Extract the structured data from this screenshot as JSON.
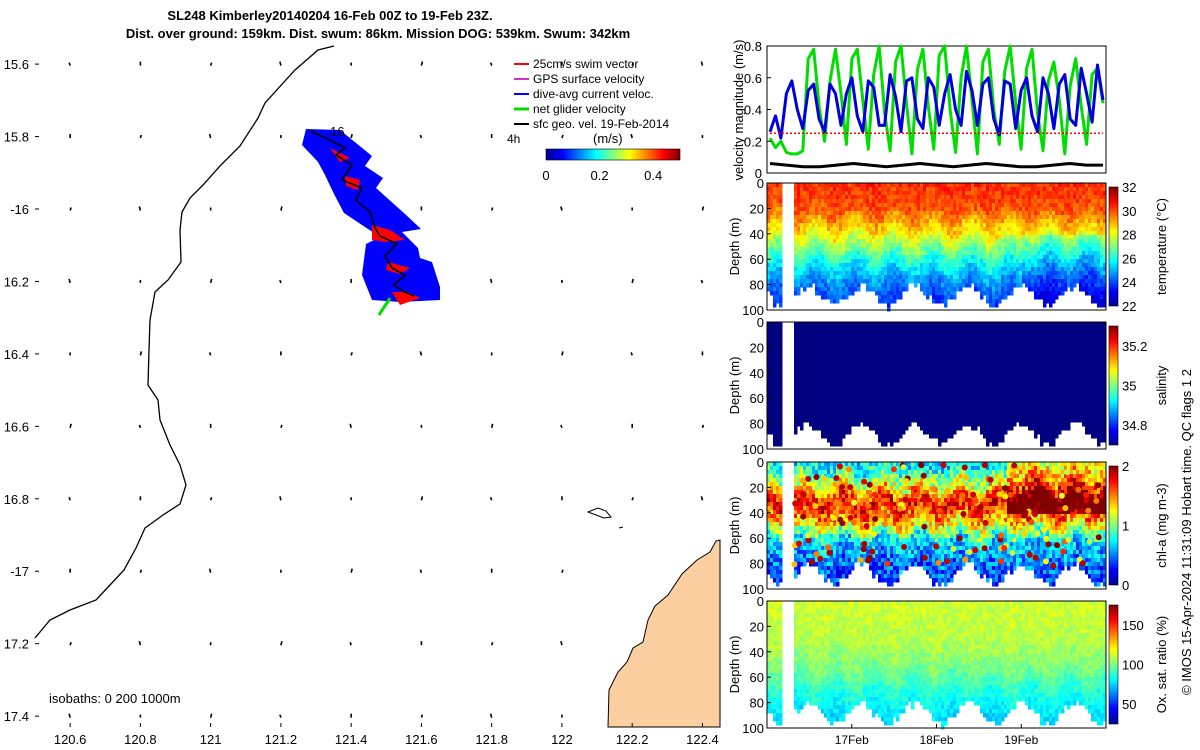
{
  "title_line1": "SL248 Kimberley20140204 16-Feb 00Z to 19-Feb 23Z.",
  "title_line2": "Dist. over ground: 159km. Dist. swum: 86km. Mission DOG: 539km. Swum: 342km",
  "credit": "© IMOS 15-Apr-2024 11:31:09 Hobart time. QC flags 1  2",
  "colors": {
    "track": "#0000ff",
    "track_red": "#ff0000",
    "land": "#fbcf9f",
    "swim": "#ff0000",
    "gps": "#cc33cc",
    "current": "#0000ff",
    "net": "#00dd00",
    "sfc": "#000000"
  },
  "chart_data": [
    {
      "type": "map",
      "name": "glider-track-map",
      "xlim": [
        120.5,
        122.45
      ],
      "ylim": [
        -17.43,
        -15.55
      ],
      "xticks": [
        120.6,
        120.8,
        121,
        121.2,
        121.4,
        121.6,
        121.8,
        122,
        122.2,
        122.4
      ],
      "xtick_labels": [
        "120.6",
        "120.8",
        "121",
        "121.2",
        "121.4",
        "121.6",
        "121.8",
        "122",
        "122.2",
        "122.4"
      ],
      "yticks": [
        -15.6,
        -15.8,
        -16,
        -16.2,
        -16.4,
        -16.6,
        -16.8,
        -17,
        -17.2,
        -17.4
      ],
      "ytick_labels": [
        "15.6",
        "15.8",
        "-16",
        "16.2",
        "16.4",
        "16.6",
        "16.8",
        "-17",
        "17.2",
        "17.4"
      ],
      "track_start_label": "16",
      "track": [
        [
          121.3,
          -15.81
        ],
        [
          121.36,
          -15.86
        ],
        [
          121.4,
          -15.93
        ],
        [
          121.46,
          -16.01
        ],
        [
          121.49,
          -16.08
        ],
        [
          121.52,
          -16.15
        ],
        [
          121.55,
          -16.2
        ],
        [
          121.57,
          -16.26
        ]
      ],
      "end_vector": [
        [
          121.5,
          -16.27
        ],
        [
          121.47,
          -16.32
        ]
      ],
      "legend": [
        "25cm/s swim vector",
        "GPS surface velocity",
        "dive-avg current veloc.",
        "net glider velocity",
        "sfc geo. vel. 19-Feb-2014"
      ],
      "legend_extra": "4h",
      "colorbar": {
        "label": "(m/s)",
        "ticks": [
          0,
          0.2,
          0.4
        ],
        "tick_labels": [
          "0",
          "0.2",
          "0.4"
        ],
        "range": [
          0,
          0.5
        ]
      },
      "isobath_label": "isobaths: 0   200  1000m"
    },
    {
      "type": "line",
      "name": "velocity-panel",
      "ylabel": "velocity magnitude (m/s)",
      "ylim": [
        0,
        0.8
      ],
      "yticks": [
        0,
        0.2,
        0.4,
        0.6,
        0.8
      ],
      "ytick_labels": [
        "0",
        "0.2",
        "0.4",
        "0.6",
        "0.8"
      ],
      "xlim": [
        0,
        4
      ],
      "series": [
        {
          "name": "net glider velocity",
          "color": "#00dd00",
          "values": [
            0.22,
            0.16,
            0.2,
            0.13,
            0.12,
            0.12,
            0.14,
            0.72,
            0.78,
            0.42,
            0.2,
            0.58,
            0.78,
            0.5,
            0.18,
            0.72,
            0.78,
            0.46,
            0.15,
            0.62,
            0.8,
            0.38,
            0.14,
            0.7,
            0.8,
            0.44,
            0.12,
            0.65,
            0.78,
            0.42,
            0.15,
            0.74,
            0.8,
            0.4,
            0.13,
            0.6,
            0.8,
            0.46,
            0.12,
            0.7,
            0.78,
            0.4,
            0.18,
            0.64,
            0.8,
            0.44,
            0.15,
            0.66,
            0.78,
            0.38,
            0.14,
            0.58,
            0.7,
            0.46,
            0.12,
            0.55,
            0.72,
            0.42,
            0.18,
            0.62,
            0.66,
            0.44
          ]
        },
        {
          "name": "dive-avg current veloc.",
          "color": "#0000dd",
          "values": [
            0.26,
            0.36,
            0.22,
            0.5,
            0.58,
            0.4,
            0.28,
            0.52,
            0.56,
            0.34,
            0.26,
            0.56,
            0.5,
            0.3,
            0.5,
            0.6,
            0.36,
            0.26,
            0.58,
            0.54,
            0.3,
            0.3,
            0.62,
            0.48,
            0.26,
            0.58,
            0.6,
            0.34,
            0.28,
            0.6,
            0.54,
            0.3,
            0.5,
            0.62,
            0.4,
            0.3,
            0.64,
            0.52,
            0.3,
            0.56,
            0.6,
            0.34,
            0.24,
            0.58,
            0.56,
            0.28,
            0.52,
            0.6,
            0.36,
            0.26,
            0.6,
            0.5,
            0.28,
            0.56,
            0.62,
            0.34,
            0.3,
            0.66,
            0.5,
            0.32,
            0.68,
            0.46
          ]
        },
        {
          "name": "25cm/s swim vector",
          "color": "#ff0000",
          "values": [
            0.25,
            0.25
          ]
        },
        {
          "name": "sfc geo. vel.",
          "color": "#000000",
          "values": [
            0.06,
            0.05,
            0.04,
            0.04,
            0.05,
            0.06,
            0.05,
            0.04,
            0.05,
            0.06,
            0.05,
            0.04,
            0.05,
            0.06,
            0.05,
            0.04,
            0.04,
            0.05,
            0.06,
            0.05,
            0.05
          ]
        }
      ]
    },
    {
      "type": "heatmap",
      "name": "temperature-section",
      "ylabel": "Depth (m)",
      "cblabel": "temperature (°C)",
      "ylim": [
        100,
        0
      ],
      "yticks": [
        0,
        20,
        40,
        60,
        80,
        100
      ],
      "clim": [
        22,
        32
      ],
      "cticks": [
        22,
        24,
        26,
        28,
        30,
        32
      ],
      "ctick_labels": [
        "22",
        "24",
        "26",
        "28",
        "30",
        "32"
      ],
      "profile": [
        {
          "depth": 0,
          "value": 30.3
        },
        {
          "depth": 20,
          "value": 29.9
        },
        {
          "depth": 35,
          "value": 28.6
        },
        {
          "depth": 50,
          "value": 27.0
        },
        {
          "depth": 65,
          "value": 25.5
        },
        {
          "depth": 80,
          "value": 24.4
        },
        {
          "depth": 95,
          "value": 23.7
        }
      ]
    },
    {
      "type": "heatmap",
      "name": "salinity-section",
      "ylabel": "Depth (m)",
      "cblabel": "salinity",
      "ylim": [
        100,
        0
      ],
      "yticks": [
        0,
        20,
        40,
        60,
        80,
        100
      ],
      "clim": [
        34.7,
        35.3
      ],
      "cticks": [
        34.8,
        35,
        35.2
      ],
      "ctick_labels": [
        "34.8",
        "35",
        "35.2"
      ],
      "profile": [
        {
          "depth": 0,
          "value": 34.7
        },
        {
          "depth": 100,
          "value": 34.7
        }
      ]
    },
    {
      "type": "heatmap",
      "name": "chla-section",
      "ylabel": "Depth (m)",
      "cblabel": "chl-a (mg m-3)",
      "ylim": [
        100,
        0
      ],
      "yticks": [
        0,
        20,
        40,
        60,
        80,
        100
      ],
      "clim": [
        0,
        2
      ],
      "cticks": [
        0,
        1,
        2
      ],
      "ctick_labels": [
        "0",
        "1",
        "2"
      ],
      "profile": [
        {
          "depth": 0,
          "value": 0.7
        },
        {
          "depth": 15,
          "value": 1.1
        },
        {
          "depth": 30,
          "value": 1.8
        },
        {
          "depth": 45,
          "value": 1.4
        },
        {
          "depth": 60,
          "value": 0.7
        },
        {
          "depth": 80,
          "value": 0.45
        },
        {
          "depth": 95,
          "value": 0.35
        }
      ]
    },
    {
      "type": "heatmap",
      "name": "oxygen-section",
      "ylabel": "Depth (m)",
      "cblabel": "Ox. sat. ratio (%)",
      "ylim": [
        100,
        0
      ],
      "yticks": [
        0,
        20,
        40,
        60,
        80,
        100
      ],
      "clim": [
        25,
        175
      ],
      "cticks": [
        50,
        100,
        150
      ],
      "ctick_labels": [
        "50",
        "100",
        "150"
      ],
      "xticks": [
        1,
        2,
        3
      ],
      "xtick_labels": [
        "17Feb",
        "18Feb",
        "19Feb"
      ],
      "profile": [
        {
          "depth": 0,
          "value": 112
        },
        {
          "depth": 30,
          "value": 108
        },
        {
          "depth": 50,
          "value": 100
        },
        {
          "depth": 70,
          "value": 86
        },
        {
          "depth": 90,
          "value": 76
        }
      ]
    }
  ]
}
